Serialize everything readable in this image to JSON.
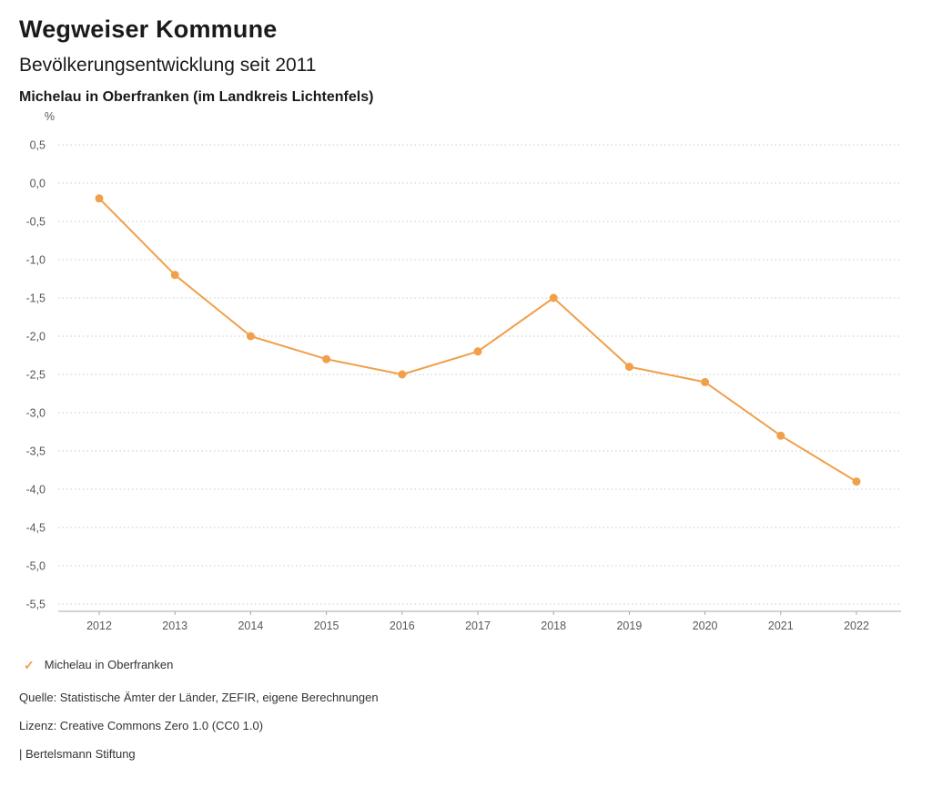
{
  "header": {
    "title": "Wegweiser Kommune",
    "subtitle": "Bevölkerungsentwicklung seit 2011",
    "region": "Michelau in Oberfranken (im Landkreis Lichtenfels)"
  },
  "chart_data": {
    "type": "line",
    "title": "Bevölkerungsentwicklung seit 2011",
    "subtitle": "Michelau in Oberfranken (im Landkreis Lichtenfels)",
    "unit_label": "%",
    "x": [
      2012,
      2013,
      2014,
      2015,
      2016,
      2017,
      2018,
      2019,
      2020,
      2021,
      2022
    ],
    "series": [
      {
        "name": "Michelau in Oberfranken",
        "values": [
          -0.2,
          -1.2,
          -2.0,
          -2.3,
          -2.5,
          -2.2,
          -1.5,
          -2.4,
          -2.6,
          -3.3,
          -3.9
        ]
      }
    ],
    "ylim": [
      -5.5,
      0.5
    ],
    "ytick_step": 0.5,
    "ytick_labels": [
      "0,5",
      "0,0",
      "-0,5",
      "-1,0",
      "-1,5",
      "-2,0",
      "-2,5",
      "-3,0",
      "-3,5",
      "-4,0",
      "-4,5",
      "-5,0",
      "-5,5"
    ],
    "grid": "horizontal-dotted",
    "legend_position": "bottom",
    "line_color": "#f0a04b",
    "marker": "circle"
  },
  "legend": {
    "checkmark_icon": "✓",
    "label": "Michelau in Oberfranken",
    "color": "#f0a04b"
  },
  "footer": {
    "source": "Quelle: Statistische Ämter der Länder, ZEFIR, eigene Berechnungen",
    "license": "Lizenz: Creative Commons Zero 1.0 (CC0 1.0)",
    "publisher": "| Bertelsmann Stiftung"
  }
}
